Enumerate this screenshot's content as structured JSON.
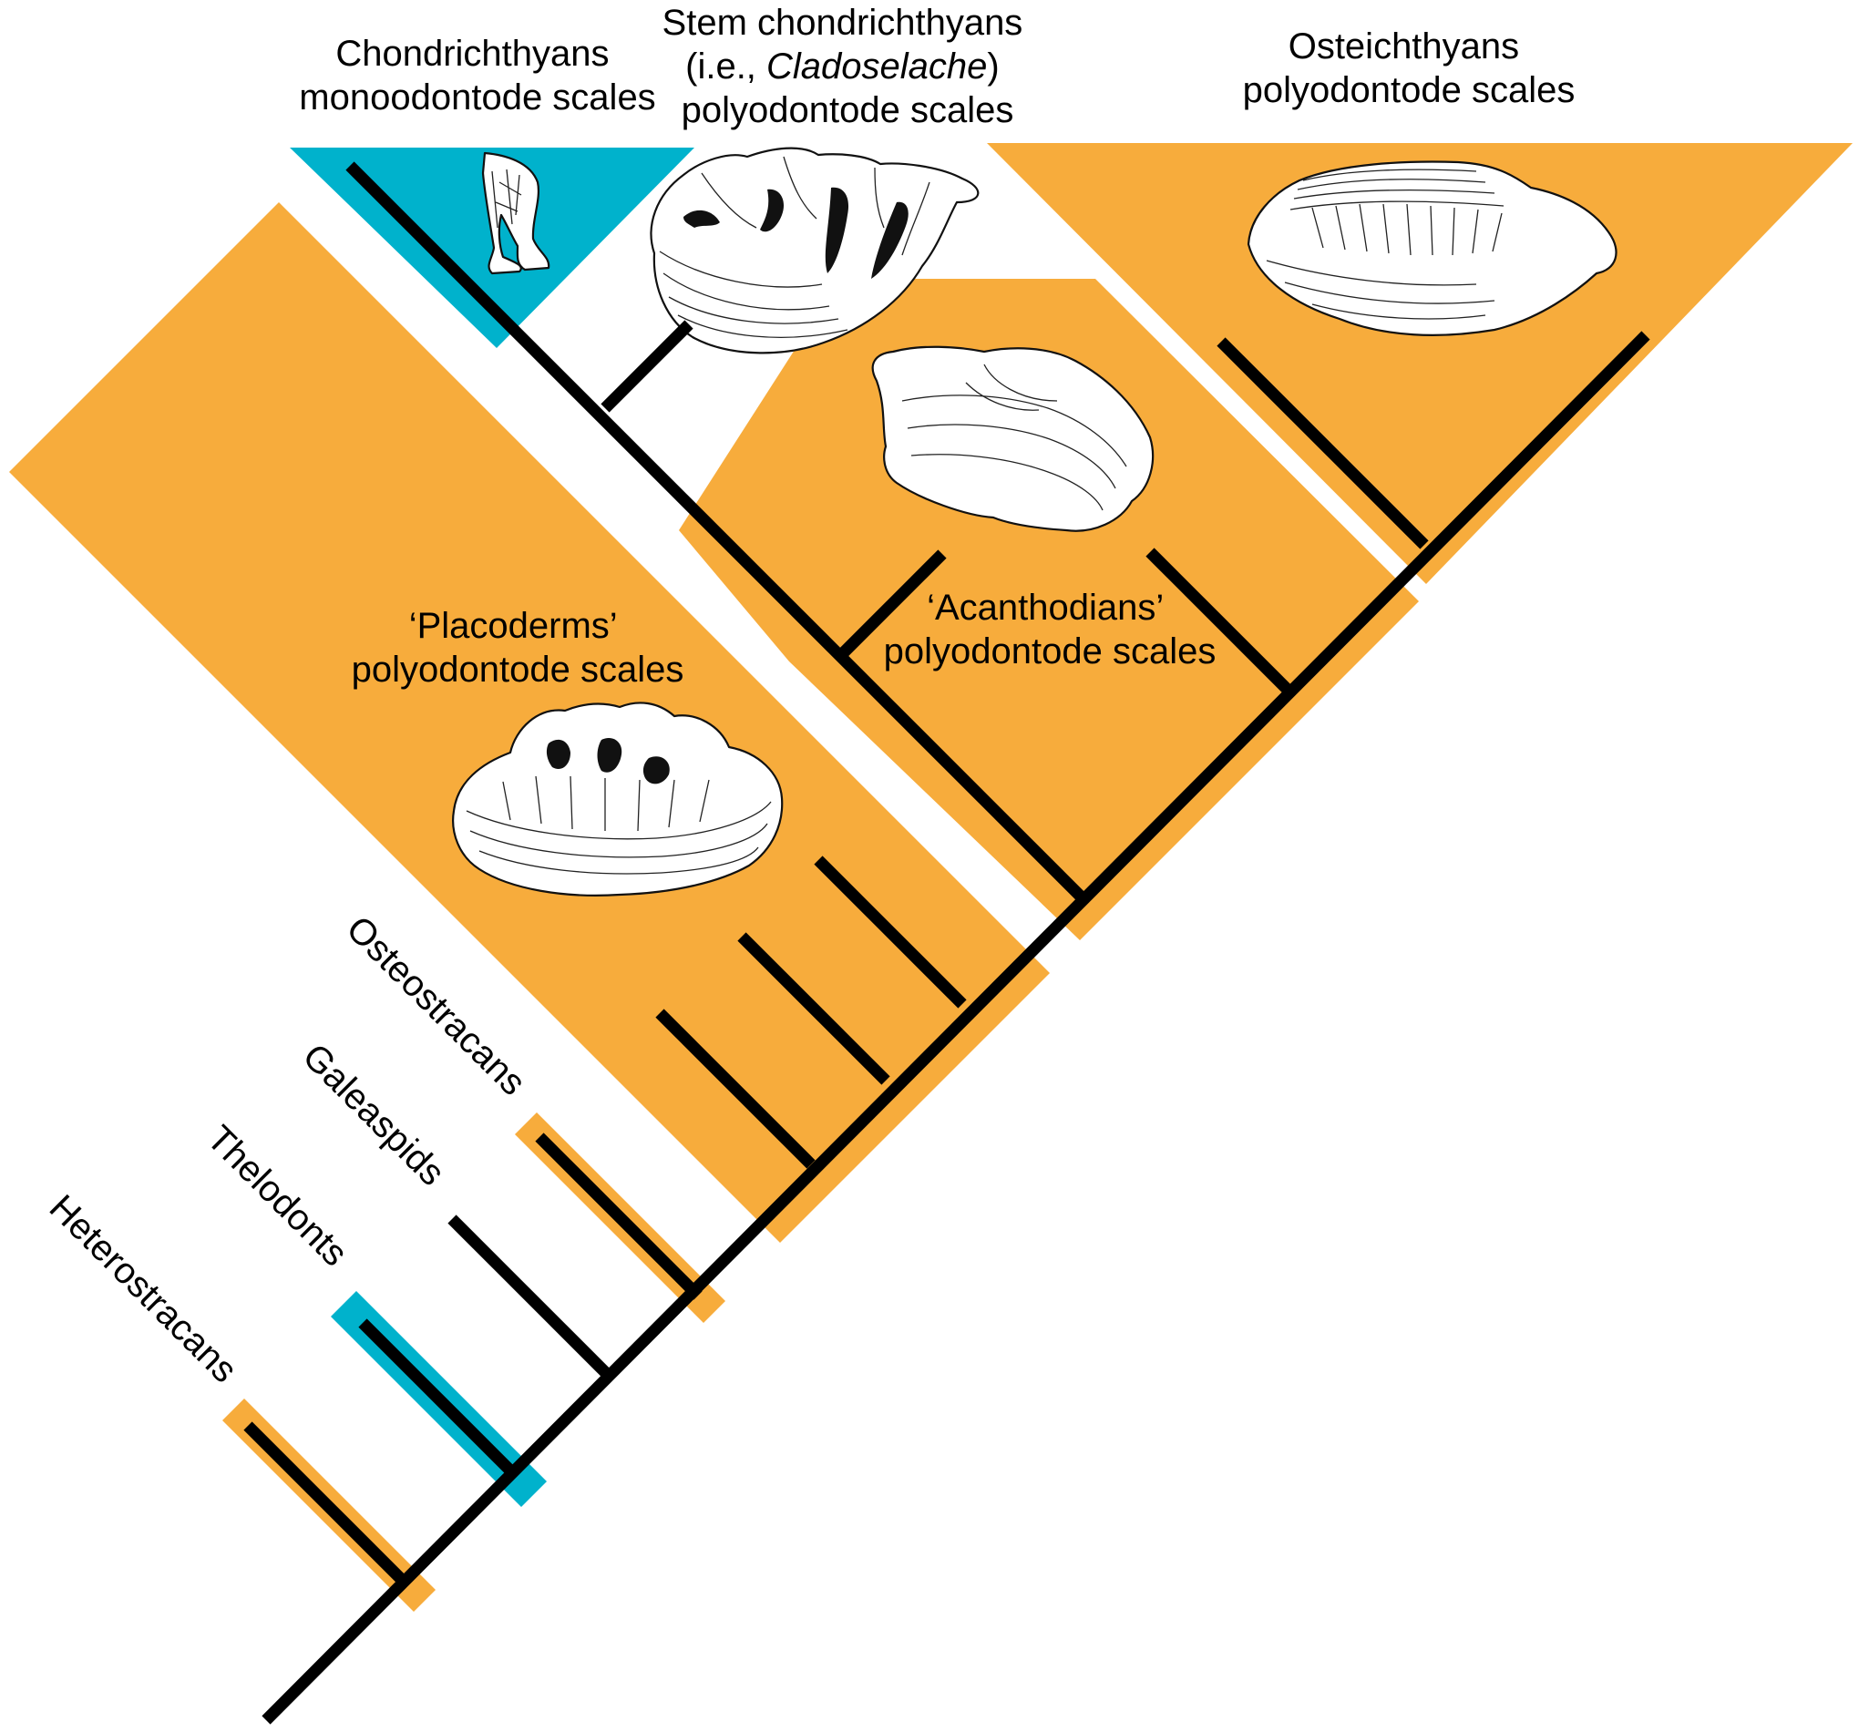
{
  "colors": {
    "polyodontode": "#F7AC3C",
    "monoodontode": "#00B2CC",
    "branch": "#000000",
    "background": "#FFFFFF"
  },
  "labels": {
    "chondrichthyans": [
      "Chondrichthyans",
      "monoodontode scales"
    ],
    "stem": {
      "line1": "Stem chondrichthyans",
      "line2_prefix": "(i.e., ",
      "line2_italic": "Cladoselache",
      "line2_suffix": ")",
      "line3": "polyodontode scales"
    },
    "osteichthyans": [
      "Osteichthyans",
      "polyodontode scales"
    ],
    "placoderms": [
      "‘Placoderms’",
      "polyodontode scales"
    ],
    "acanthodians": [
      "‘Acanthodians’",
      "polyodontode scales"
    ],
    "osteostracans": "Osteostracans",
    "galeaspids": "Galeaspids",
    "thelodonts": "Thelodonts",
    "heterostracans": "Heterostracans"
  },
  "icons": {
    "chondrichthyan_scale": "chondrichthyan-scale-illustration",
    "cladoselache_scale": "cladoselache-scale-illustration",
    "osteichthyan_scale": "osteichthyan-scale-illustration",
    "acanthodian_scale": "acanthodian-scale-illustration",
    "placoderm_scale": "placoderm-scale-illustration"
  }
}
